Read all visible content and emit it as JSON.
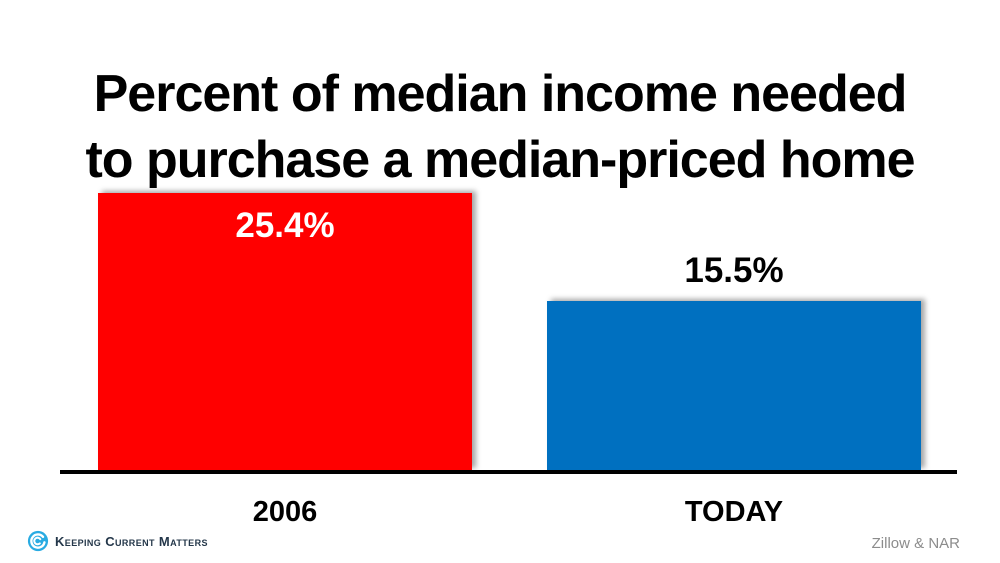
{
  "slide": {
    "title_lines": [
      "Percent of median income needed",
      "to purchase a median-priced home"
    ],
    "source_label": "Zillow & NAR",
    "brand": {
      "name": "Keeping Current Matters",
      "logo_icon": "kcm-swirl-logo-icon",
      "logo_color": "#29abe2",
      "text_color": "#24374a"
    }
  },
  "chart_data": {
    "type": "bar",
    "title": "Percent of median income needed to purchase a median-priced home",
    "categories": [
      "2006",
      "TODAY"
    ],
    "values": [
      25.4,
      15.5
    ],
    "value_labels": [
      "25.4%",
      "15.5%"
    ],
    "bar_colors": [
      "#ff0000",
      "#0070c0"
    ],
    "value_label_styles": [
      {
        "placement": "inside",
        "color": "#ffffff"
      },
      {
        "placement": "above",
        "color": "#000000"
      }
    ],
    "xlabel": "",
    "ylabel": "",
    "ylim": [
      0,
      27
    ],
    "grid": false,
    "legend": "none",
    "axis_color": "#000000"
  }
}
